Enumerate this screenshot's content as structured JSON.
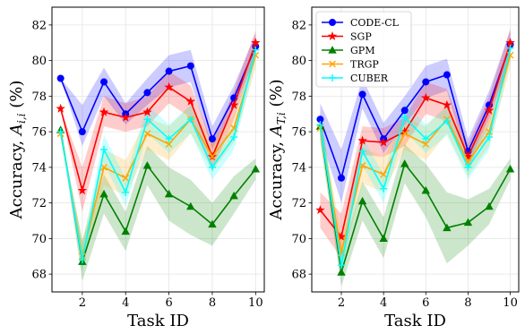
{
  "figure": {
    "colors": {
      "CODE-CL": "#0000ff",
      "SGP": "#ff0000",
      "GPM": "#008000",
      "TRGP": "#ffa500",
      "CUBER": "#00ffff"
    }
  },
  "chart_data": [
    {
      "type": "line",
      "xlabel": "Task ID",
      "ylabel": "Accuracy, A_{i,i} (%)",
      "ylabel_main": "Accuracy, ",
      "ylabel_var": "A",
      "ylabel_sub": "i,i",
      "ylabel_unit": " (%)",
      "xlim": [
        0.6,
        10.4
      ],
      "ylim": [
        67,
        83
      ],
      "xticks": [
        2,
        4,
        6,
        8,
        10
      ],
      "yticks": [
        68,
        70,
        72,
        74,
        76,
        78,
        80,
        82
      ],
      "grid": true,
      "x": [
        1,
        2,
        3,
        4,
        5,
        6,
        7,
        8,
        9,
        10
      ],
      "series": [
        {
          "name": "CODE-CL",
          "marker": "circle",
          "values": [
            79.0,
            76.0,
            78.8,
            77.0,
            78.2,
            79.4,
            79.7,
            75.6,
            77.9,
            80.8
          ],
          "band": [
            [
              79.0,
              79.0
            ],
            [
              75.2,
              77.5
            ],
            [
              78.0,
              79.6
            ],
            [
              76.4,
              77.6
            ],
            [
              77.5,
              79.0
            ],
            [
              78.5,
              80.3
            ],
            [
              78.8,
              80.6
            ],
            [
              75.0,
              76.3
            ],
            [
              77.3,
              78.6
            ],
            [
              80.2,
              81.5
            ]
          ]
        },
        {
          "name": "SGP",
          "marker": "star",
          "values": [
            77.3,
            72.7,
            77.1,
            76.8,
            77.1,
            78.5,
            77.7,
            74.6,
            77.5,
            81.0
          ],
          "band": [
            [
              77.3,
              77.3
            ],
            [
              71.5,
              74.0
            ],
            [
              76.3,
              78.0
            ],
            [
              76.0,
              77.6
            ],
            [
              76.3,
              78.0
            ],
            [
              77.6,
              79.4
            ],
            [
              76.8,
              78.6
            ],
            [
              73.8,
              75.4
            ],
            [
              76.7,
              78.3
            ],
            [
              80.4,
              81.7
            ]
          ]
        },
        {
          "name": "GPM",
          "marker": "triangle",
          "values": [
            76.1,
            68.7,
            72.5,
            70.4,
            74.1,
            72.5,
            71.8,
            70.8,
            72.4,
            73.9
          ],
          "band": [
            [
              76.1,
              76.1
            ],
            [
              67.6,
              69.9
            ],
            [
              71.4,
              73.6
            ],
            [
              69.3,
              71.5
            ],
            [
              73.0,
              75.2
            ],
            [
              71.0,
              74.0
            ],
            [
              70.2,
              73.3
            ],
            [
              69.6,
              72.0
            ],
            [
              71.4,
              73.5
            ],
            [
              73.3,
              74.5
            ]
          ]
        },
        {
          "name": "TRGP",
          "marker": "x",
          "values": [
            75.9,
            69.0,
            74.0,
            73.4,
            75.9,
            75.3,
            76.7,
            74.6,
            76.2,
            80.3
          ],
          "band": [
            [
              75.9,
              75.9
            ],
            [
              68.2,
              69.9
            ],
            [
              73.0,
              75.0
            ],
            [
              72.4,
              74.4
            ],
            [
              75.0,
              76.8
            ],
            [
              74.4,
              76.3
            ],
            [
              75.9,
              77.5
            ],
            [
              73.8,
              75.4
            ],
            [
              75.4,
              77.0
            ],
            [
              79.6,
              81.0
            ]
          ]
        },
        {
          "name": "CUBER",
          "marker": "plus",
          "values": [
            76.0,
            68.8,
            75.0,
            72.6,
            76.7,
            75.6,
            76.7,
            74.0,
            75.7,
            80.6
          ],
          "band": [
            [
              76.0,
              76.0
            ],
            [
              68.1,
              69.6
            ],
            [
              74.2,
              75.8
            ],
            [
              71.8,
              73.4
            ],
            [
              75.9,
              77.5
            ],
            [
              74.8,
              76.4
            ],
            [
              75.9,
              77.5
            ],
            [
              73.3,
              74.7
            ],
            [
              75.0,
              76.4
            ],
            [
              80.0,
              81.2
            ]
          ]
        }
      ]
    },
    {
      "type": "line",
      "xlabel": "Task ID",
      "ylabel": "Accuracy, A_{T,i} (%)",
      "ylabel_main": "Accuracy, ",
      "ylabel_var": "A",
      "ylabel_sub": "T,i",
      "ylabel_unit": " (%)",
      "xlim": [
        0.6,
        10.4
      ],
      "ylim": [
        67,
        83
      ],
      "xticks": [
        2,
        4,
        6,
        8,
        10
      ],
      "yticks": [
        68,
        70,
        72,
        74,
        76,
        78,
        80,
        82
      ],
      "grid": true,
      "legend_position": "top-left",
      "x": [
        1,
        2,
        3,
        4,
        5,
        6,
        7,
        8,
        9,
        10
      ],
      "series": [
        {
          "name": "CODE-CL",
          "marker": "circle",
          "values": [
            76.7,
            73.4,
            78.1,
            75.6,
            77.2,
            78.8,
            79.2,
            74.9,
            77.5,
            80.9
          ],
          "band": [
            [
              75.8,
              77.6
            ],
            [
              72.0,
              75.0
            ],
            [
              77.3,
              79.0
            ],
            [
              74.8,
              76.5
            ],
            [
              76.4,
              78.0
            ],
            [
              77.9,
              79.7
            ],
            [
              78.3,
              80.1
            ],
            [
              74.2,
              75.6
            ],
            [
              76.8,
              78.3
            ],
            [
              80.2,
              81.7
            ]
          ]
        },
        {
          "name": "SGP",
          "marker": "star",
          "values": [
            71.6,
            70.1,
            75.5,
            75.4,
            76.0,
            77.9,
            77.5,
            74.6,
            77.2,
            81.0
          ],
          "band": [
            [
              70.6,
              72.6
            ],
            [
              68.9,
              71.4
            ],
            [
              74.7,
              76.3
            ],
            [
              74.6,
              76.2
            ],
            [
              75.2,
              76.8
            ],
            [
              77.0,
              78.8
            ],
            [
              76.6,
              78.4
            ],
            [
              73.9,
              75.3
            ],
            [
              76.4,
              78.0
            ],
            [
              80.3,
              81.8
            ]
          ]
        },
        {
          "name": "GPM",
          "marker": "triangle",
          "values": [
            76.3,
            68.1,
            72.1,
            70.0,
            74.2,
            72.7,
            70.6,
            70.9,
            71.8,
            73.9
          ],
          "band": [
            [
              75.5,
              77.1
            ],
            [
              67.3,
              69.0
            ],
            [
              71.0,
              73.2
            ],
            [
              68.9,
              71.2
            ],
            [
              73.1,
              75.3
            ],
            [
              71.2,
              74.2
            ],
            [
              68.6,
              72.6
            ],
            [
              69.6,
              72.2
            ],
            [
              70.8,
              72.8
            ],
            [
              73.3,
              74.5
            ]
          ]
        },
        {
          "name": "TRGP",
          "marker": "x",
          "values": [
            76.2,
            69.2,
            74.1,
            73.6,
            75.9,
            75.3,
            76.7,
            74.3,
            76.0,
            80.3
          ],
          "band": [
            [
              75.4,
              77.0
            ],
            [
              68.4,
              70.1
            ],
            [
              73.1,
              75.1
            ],
            [
              72.6,
              74.6
            ],
            [
              75.0,
              76.8
            ],
            [
              74.4,
              76.3
            ],
            [
              75.9,
              77.5
            ],
            [
              73.5,
              75.1
            ],
            [
              75.2,
              76.8
            ],
            [
              79.6,
              81.0
            ]
          ]
        },
        {
          "name": "CUBER",
          "marker": "plus",
          "values": [
            76.4,
            68.5,
            74.9,
            72.8,
            76.8,
            75.6,
            76.6,
            74.0,
            75.7,
            80.7
          ],
          "band": [
            [
              75.6,
              77.2
            ],
            [
              67.8,
              69.3
            ],
            [
              74.1,
              75.7
            ],
            [
              72.0,
              73.6
            ],
            [
              76.0,
              77.6
            ],
            [
              74.8,
              76.4
            ],
            [
              75.8,
              77.4
            ],
            [
              73.3,
              74.7
            ],
            [
              75.0,
              76.4
            ],
            [
              80.0,
              81.3
            ]
          ]
        }
      ]
    }
  ]
}
